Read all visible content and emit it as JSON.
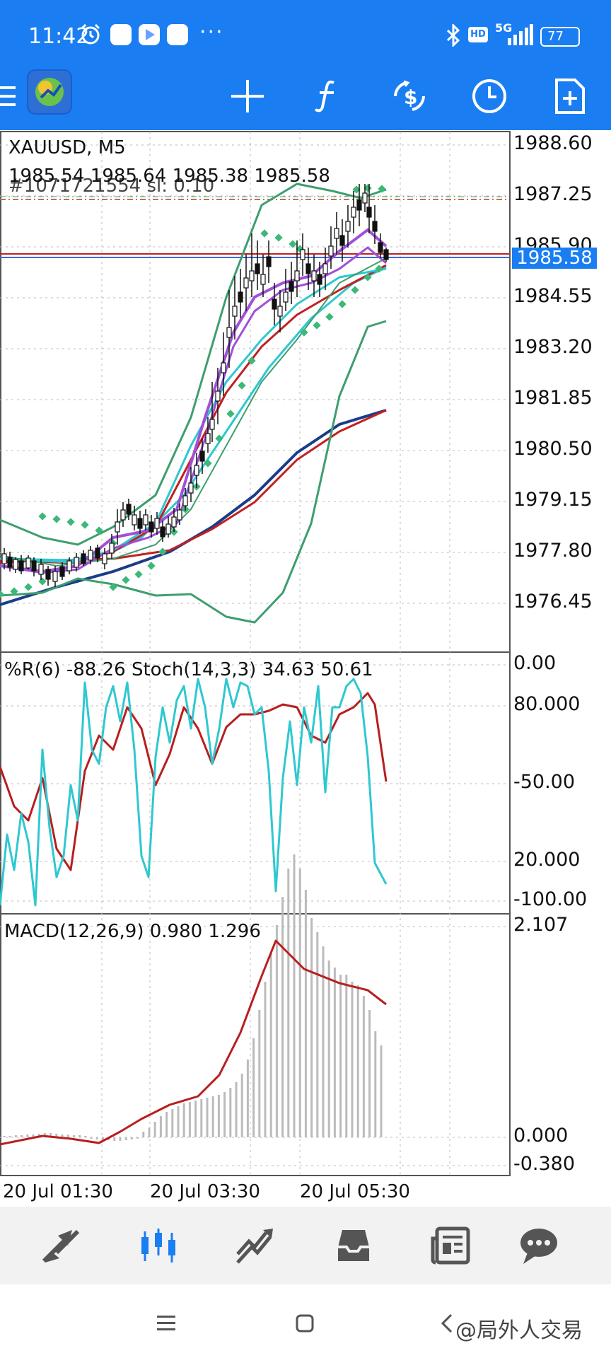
{
  "status": {
    "time": "11:42",
    "more": "···",
    "network": "5G",
    "battery": "77"
  },
  "toolbar": {
    "crosshair_icon": "crosshair-icon",
    "indicators_icon": "function-icon",
    "symbols_icon": "symbols-icon",
    "periods_icon": "clock-icon",
    "new_order_icon": "new-order-icon"
  },
  "chart": {
    "symbol_line": "XAUUSD, M5",
    "ohlc": "1985.54 1985.64 1985.38 1985.58",
    "ticket": "#1071721554 sl: 0.10",
    "price_ticks": [
      "1988.60",
      "1987.25",
      "1985.90",
      "1984.55",
      "1983.20",
      "1981.85",
      "1980.50",
      "1979.15",
      "1977.80",
      "1976.45"
    ],
    "current_price": "1985.58",
    "colors": {
      "bollinger": "#3e9e6e",
      "ma_purple": "#a050d8",
      "ma_cyan": "#2ec8d0",
      "ma_red": "#c22020",
      "ma_navy": "#1a3d8a",
      "sar": "#3cb878",
      "price_tag": "#1a7ef2"
    }
  },
  "oscillator": {
    "label": "%R(6) -88.26 Stoch(14,3,3) 34.63 50.61",
    "ticks": [
      "0.00",
      "80.000",
      "-50.00",
      "20.000",
      "-100.00"
    ]
  },
  "macd": {
    "label": "MACD(12,26,9) 0.980 1.296",
    "ticks": [
      "2.107",
      "0.000",
      "-0.380"
    ]
  },
  "time_axis": [
    "20 Jul 01:30",
    "20 Jul 03:30",
    "20 Jul 05:30"
  ],
  "bottom_nav": [
    {
      "name": "quotes-icon"
    },
    {
      "name": "chart-icon"
    },
    {
      "name": "trade-icon"
    },
    {
      "name": "history-icon"
    },
    {
      "name": "news-icon"
    },
    {
      "name": "messages-icon"
    }
  ],
  "watermark": "@局外人交易"
}
